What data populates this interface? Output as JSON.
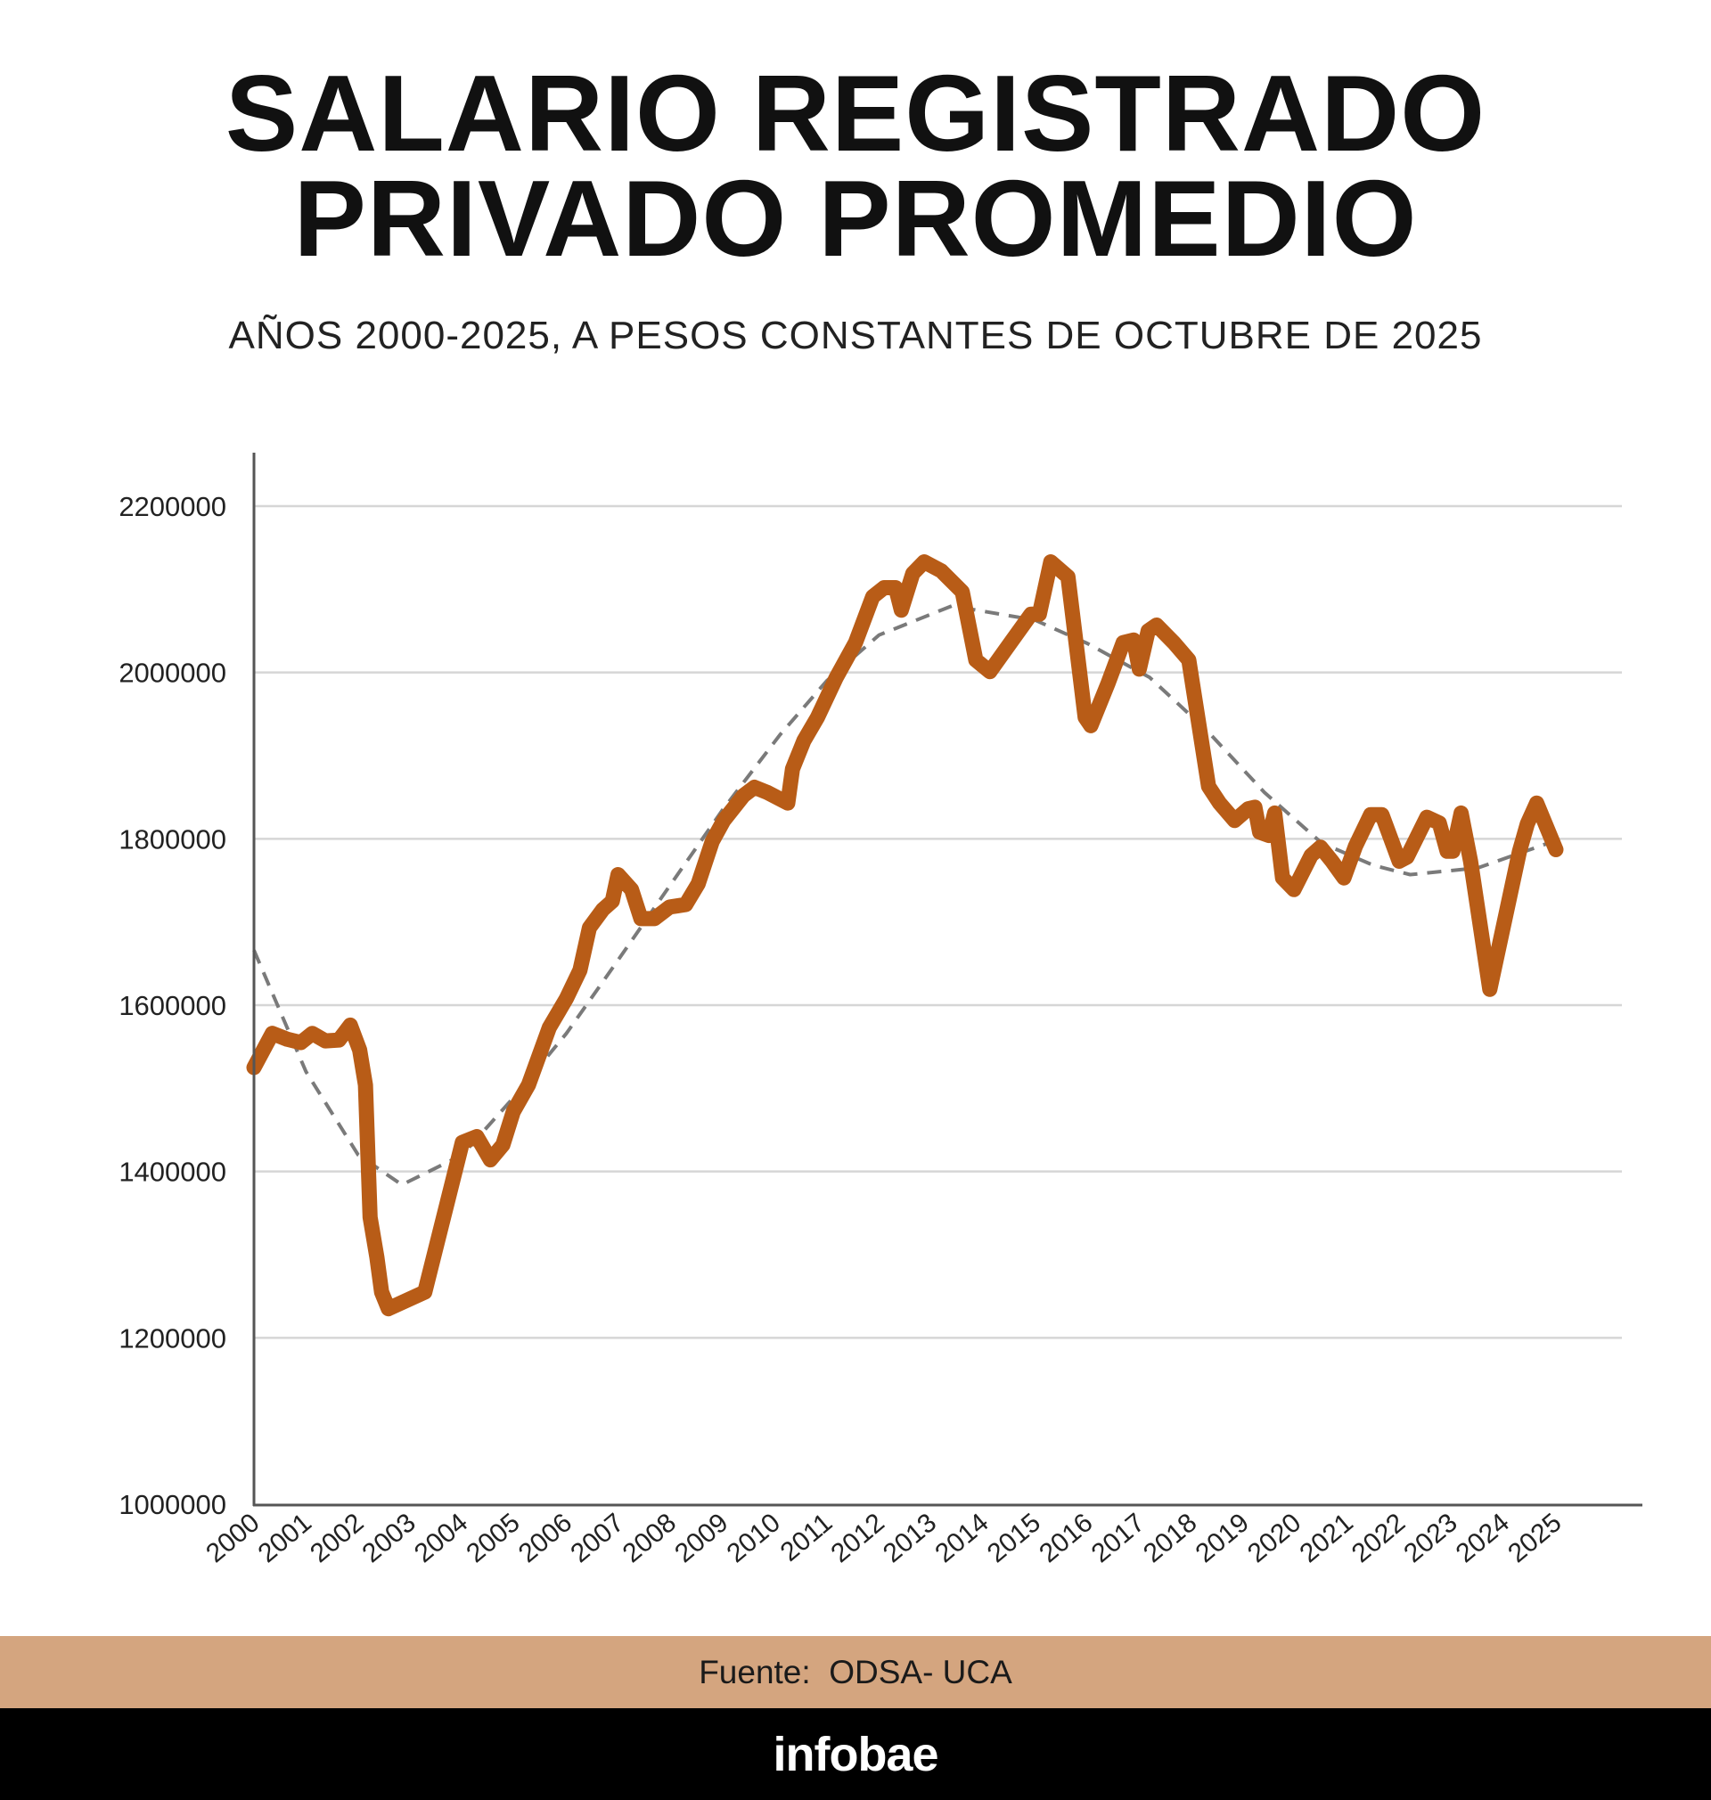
{
  "colors": {
    "series": "#B85C17",
    "trend": "#7a7a7a",
    "footer_band": "#D4A57F",
    "brand_bar": "#000000"
  },
  "footer": {
    "source": "Fuente:  ODSA- UCA",
    "brand": "infobae"
  },
  "chart_data": {
    "type": "line",
    "title_lines": [
      "SALARIO REGISTRADO",
      "PRIVADO PROMEDIO"
    ],
    "subtitle": "AÑOS 2000-2025, A PESOS CONSTANTES DE OCTUBRE DE 2025",
    "xlabel": "",
    "ylabel": "",
    "xlim": [
      2000,
      2025
    ],
    "ylim": [
      1000000,
      2200000
    ],
    "yticks": [
      "1000000",
      "1200000",
      "1400000",
      "1600000",
      "1800000",
      "2000000",
      "2200000"
    ],
    "xticks": [
      "2000",
      "2001",
      "2002",
      "2003",
      "2004",
      "2005",
      "2006",
      "2007",
      "2008",
      "2009",
      "2010",
      "2011",
      "2012",
      "2013",
      "2014",
      "2015",
      "2016",
      "2017",
      "2018",
      "2019",
      "2020",
      "2021",
      "2022",
      "2023",
      "2024",
      "2025"
    ],
    "grid": "horizontal",
    "series": [
      {
        "style": "solid",
        "points": [
          [
            2000.0,
            1525000
          ],
          [
            2000.35,
            1566000
          ],
          [
            2000.64,
            1559000
          ],
          [
            2000.9,
            1555000
          ],
          [
            2001.12,
            1566000
          ],
          [
            2001.37,
            1557000
          ],
          [
            2001.63,
            1558000
          ],
          [
            2001.85,
            1576000
          ],
          [
            2002.03,
            1546000
          ],
          [
            2002.14,
            1504000
          ],
          [
            2002.23,
            1345000
          ],
          [
            2002.36,
            1297000
          ],
          [
            2002.45,
            1255000
          ],
          [
            2002.58,
            1235000
          ],
          [
            2003.28,
            1255000
          ],
          [
            2004.0,
            1435000
          ],
          [
            2004.28,
            1442000
          ],
          [
            2004.54,
            1414000
          ],
          [
            2004.78,
            1432000
          ],
          [
            2004.98,
            1472000
          ],
          [
            2005.27,
            1504000
          ],
          [
            2005.67,
            1573000
          ],
          [
            2006.0,
            1608000
          ],
          [
            2006.26,
            1642000
          ],
          [
            2006.44,
            1693000
          ],
          [
            2006.7,
            1715000
          ],
          [
            2006.88,
            1725000
          ],
          [
            2006.99,
            1757000
          ],
          [
            2007.25,
            1739000
          ],
          [
            2007.43,
            1704000
          ],
          [
            2007.69,
            1704000
          ],
          [
            2007.98,
            1718000
          ],
          [
            2008.29,
            1721000
          ],
          [
            2008.53,
            1746000
          ],
          [
            2008.8,
            1797000
          ],
          [
            2009.02,
            1822000
          ],
          [
            2009.4,
            1852000
          ],
          [
            2009.61,
            1862000
          ],
          [
            2009.85,
            1856000
          ],
          [
            2010.25,
            1843000
          ],
          [
            2010.34,
            1884000
          ],
          [
            2010.56,
            1918000
          ],
          [
            2010.82,
            1946000
          ],
          [
            2011.18,
            1994000
          ],
          [
            2011.55,
            2036000
          ],
          [
            2011.88,
            2091000
          ],
          [
            2012.1,
            2102000
          ],
          [
            2012.32,
            2102000
          ],
          [
            2012.43,
            2075000
          ],
          [
            2012.65,
            2119000
          ],
          [
            2012.87,
            2133000
          ],
          [
            2013.2,
            2122000
          ],
          [
            2013.6,
            2097000
          ],
          [
            2013.86,
            2015000
          ],
          [
            2014.13,
            2001000
          ],
          [
            2014.53,
            2036000
          ],
          [
            2014.92,
            2070000
          ],
          [
            2015.08,
            2070000
          ],
          [
            2015.3,
            2133000
          ],
          [
            2015.63,
            2115000
          ],
          [
            2015.96,
            1946000
          ],
          [
            2016.07,
            1936000
          ],
          [
            2016.4,
            1987000
          ],
          [
            2016.69,
            2036000
          ],
          [
            2016.89,
            2039000
          ],
          [
            2017.0,
            2004000
          ],
          [
            2017.17,
            2050000
          ],
          [
            2017.33,
            2057000
          ],
          [
            2017.66,
            2036000
          ],
          [
            2017.95,
            2015000
          ],
          [
            2018.33,
            1863000
          ],
          [
            2018.54,
            1843000
          ],
          [
            2018.83,
            1822000
          ],
          [
            2019.09,
            1836000
          ],
          [
            2019.22,
            1838000
          ],
          [
            2019.31,
            1808000
          ],
          [
            2019.49,
            1804000
          ],
          [
            2019.6,
            1831000
          ],
          [
            2019.75,
            1753000
          ],
          [
            2019.97,
            1739000
          ],
          [
            2020.3,
            1780000
          ],
          [
            2020.48,
            1790000
          ],
          [
            2020.7,
            1773000
          ],
          [
            2020.93,
            1753000
          ],
          [
            2021.15,
            1791000
          ],
          [
            2021.44,
            1829000
          ],
          [
            2021.66,
            1829000
          ],
          [
            2021.99,
            1773000
          ],
          [
            2022.14,
            1778000
          ],
          [
            2022.52,
            1826000
          ],
          [
            2022.76,
            1819000
          ],
          [
            2022.91,
            1785000
          ],
          [
            2023.02,
            1785000
          ],
          [
            2023.18,
            1831000
          ],
          [
            2023.36,
            1773000
          ],
          [
            2023.73,
            1619000
          ],
          [
            2024.3,
            1785000
          ],
          [
            2024.45,
            1818000
          ],
          [
            2024.63,
            1843000
          ],
          [
            2025.0,
            1787000
          ]
        ]
      },
      {
        "style": "dashed-trend",
        "points": [
          [
            2000.0,
            1666000
          ],
          [
            2001.0,
            1520000
          ],
          [
            2002.0,
            1420000
          ],
          [
            2002.84,
            1384000
          ],
          [
            2004.0,
            1420000
          ],
          [
            2005.0,
            1490000
          ],
          [
            2006.0,
            1566000
          ],
          [
            2007.0,
            1655000
          ],
          [
            2008.0,
            1745000
          ],
          [
            2009.0,
            1835000
          ],
          [
            2010.1,
            1925000
          ],
          [
            2011.0,
            1990000
          ],
          [
            2012.0,
            2045000
          ],
          [
            2013.4,
            2080000
          ],
          [
            2015.0,
            2063000
          ],
          [
            2016.0,
            2035000
          ],
          [
            2017.2,
            1994000
          ],
          [
            2018.3,
            1930000
          ],
          [
            2019.4,
            1856000
          ],
          [
            2020.5,
            1795000
          ],
          [
            2021.5,
            1768000
          ],
          [
            2022.2,
            1757000
          ],
          [
            2023.5,
            1765000
          ],
          [
            2025.0,
            1798000
          ]
        ]
      }
    ]
  }
}
